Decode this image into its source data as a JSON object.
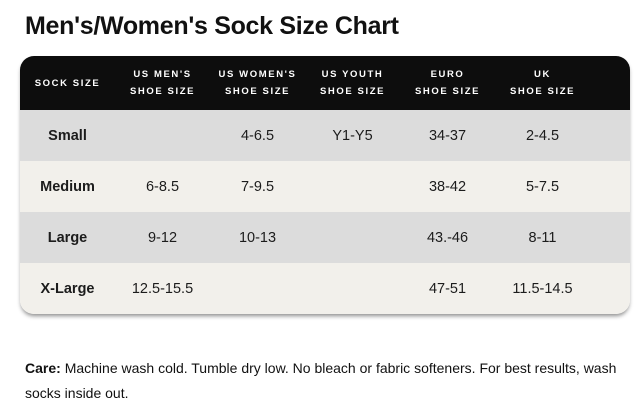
{
  "title": "Men's/Women's Sock Size Chart",
  "table": {
    "columns": [
      {
        "line1": "SOCK SIZE",
        "line2": ""
      },
      {
        "line1": "US MEN'S",
        "line2": "SHOE SIZE"
      },
      {
        "line1": "US WOMEN'S",
        "line2": "SHOE SIZE"
      },
      {
        "line1": "US YOUTH",
        "line2": "SHOE SIZE"
      },
      {
        "line1": "EURO",
        "line2": "SHOE SIZE"
      },
      {
        "line1": "UK",
        "line2": "SHOE SIZE"
      }
    ],
    "rows": [
      {
        "cells": [
          "Small",
          "",
          "4-6.5",
          "Y1-Y5",
          "34-37",
          "2-4.5"
        ]
      },
      {
        "cells": [
          "Medium",
          "6-8.5",
          "7-9.5",
          "",
          "38-42",
          "5-7.5"
        ]
      },
      {
        "cells": [
          "Large",
          "9-12",
          "10-13",
          "",
          "43.-46",
          "8-11"
        ]
      },
      {
        "cells": [
          "X-Large",
          "12.5-15.5",
          "",
          "",
          "47-51",
          "11.5-14.5"
        ]
      }
    ]
  },
  "care": {
    "label": "Care:",
    "text": "Machine wash cold. Tumble dry low. No bleach or fabric softeners. For best results, wash socks inside out."
  },
  "colors": {
    "header_bg": "#0d0d0d",
    "header_text": "#ffffff",
    "row_gray": "#dcdcdc",
    "row_cream": "#f2f0eb",
    "text_dark": "#1c1c1c",
    "page_bg": "#ffffff"
  }
}
